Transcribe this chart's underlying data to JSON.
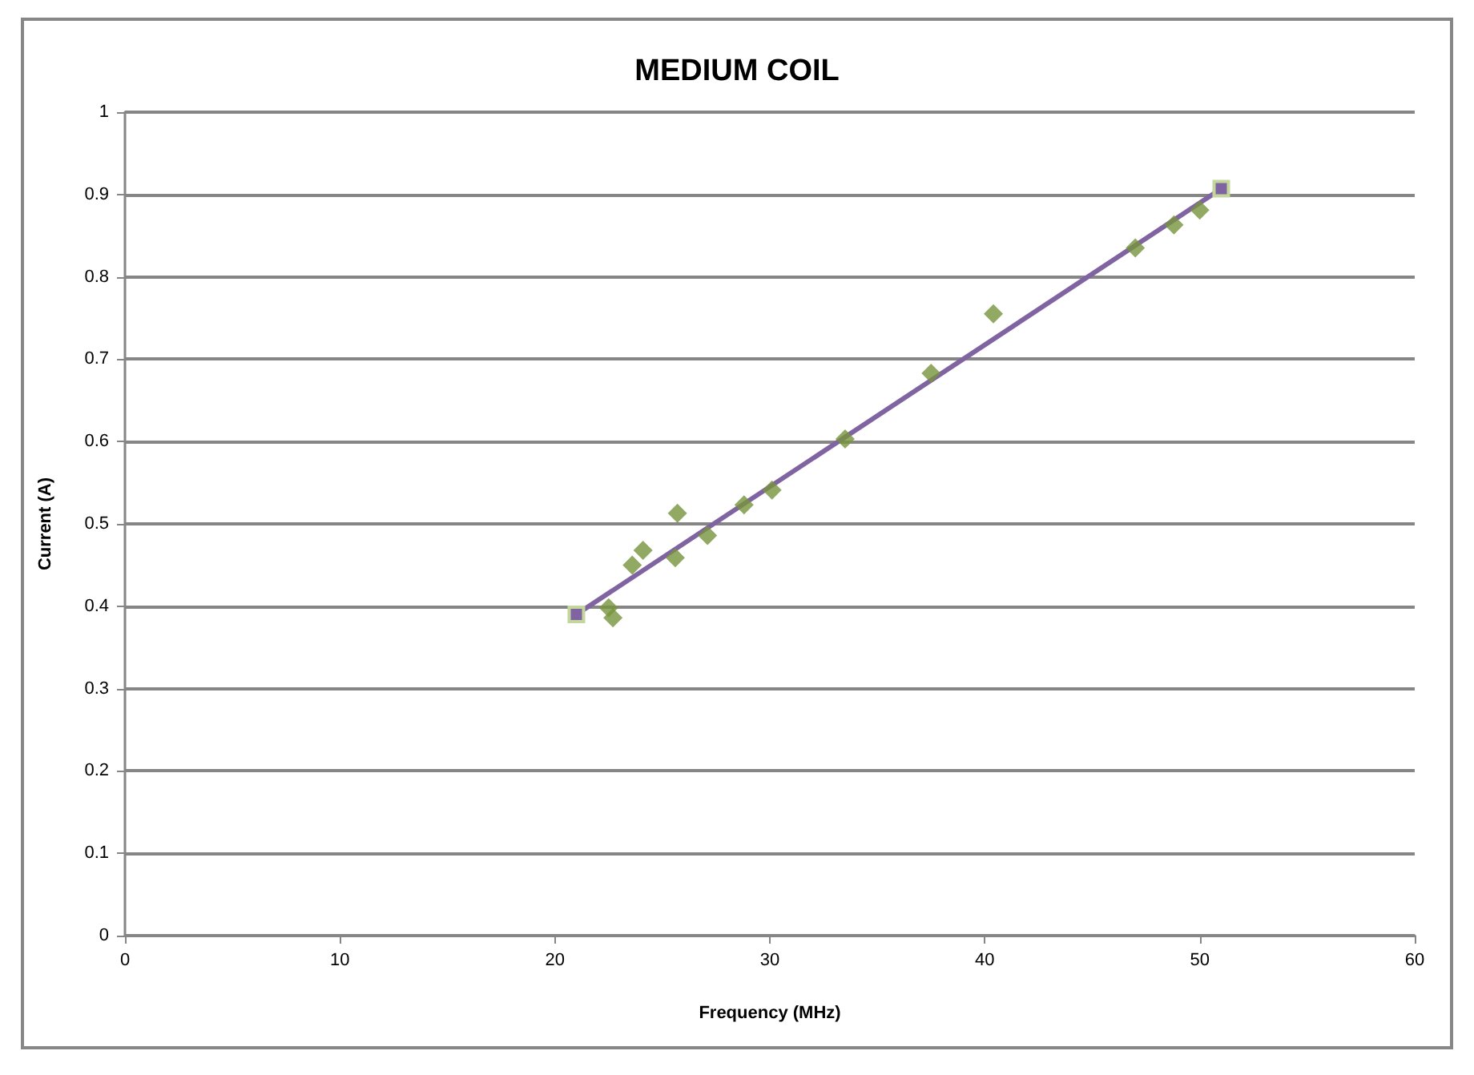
{
  "chart_data": {
    "type": "scatter",
    "title": "MEDIUM COIL",
    "xlabel": "Frequency (MHz)",
    "ylabel": "Current (A)",
    "xlim": [
      0,
      60
    ],
    "xticks": [
      0,
      10,
      20,
      30,
      40,
      50,
      60
    ],
    "ylim": [
      0,
      1
    ],
    "yticks": [
      0,
      0.1,
      0.2,
      0.3,
      0.4,
      0.5,
      0.6,
      0.7,
      0.8,
      0.9,
      1
    ],
    "grid": "y",
    "series": [
      {
        "marker": "diamond",
        "color": "#77933c",
        "x": [
          22.5,
          22.7,
          23.6,
          24.1,
          25.7,
          25.6,
          27.1,
          28.8,
          30.1,
          33.5,
          37.5,
          40.4,
          47.0,
          48.8,
          50.0
        ],
        "values": [
          0.398,
          0.386,
          0.45,
          0.468,
          0.513,
          0.459,
          0.486,
          0.523,
          0.541,
          0.603,
          0.683,
          0.755,
          0.835,
          0.863,
          0.881
        ]
      },
      {
        "type": "line",
        "marker": "square",
        "line_style": "solid",
        "color": "#8064a2",
        "x": [
          21,
          51
        ],
        "values": [
          0.39,
          0.907
        ]
      }
    ]
  }
}
